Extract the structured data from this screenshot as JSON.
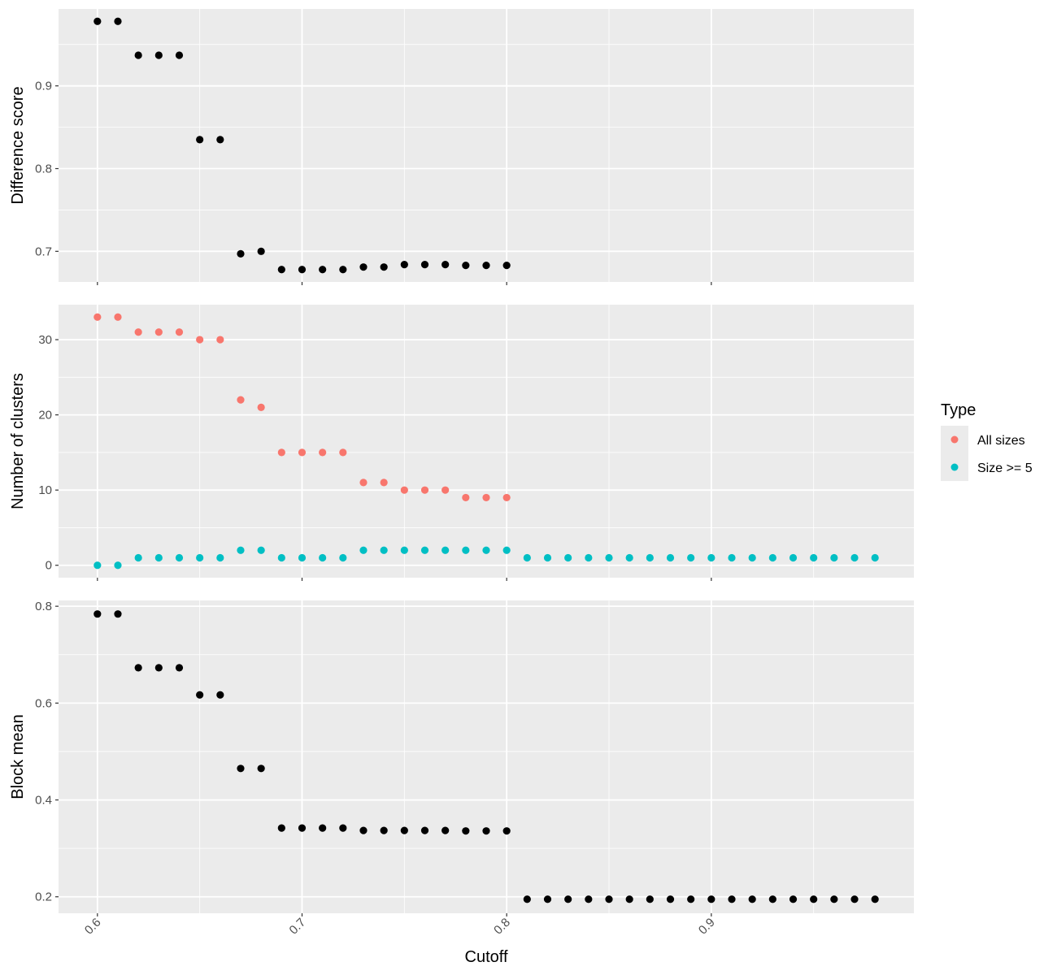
{
  "chart_data": {
    "type": "scatter",
    "xlabel": "Cutoff",
    "x_ticks": [
      "0.6",
      "0.7",
      "0.8",
      "0.9"
    ],
    "xlim": [
      0.581,
      0.999
    ],
    "grid": true,
    "colors": {
      "panel_bg": "#ebebeb",
      "grid": "#ffffff",
      "all_sizes": "#f8766d",
      "size_ge_5": "#00bfc4",
      "black": "#000000"
    },
    "legend": {
      "position": "right",
      "title": "Type",
      "items": [
        {
          "label": "All sizes",
          "color": "#f8766d"
        },
        {
          "label": "Size >= 5",
          "color": "#00bfc4"
        }
      ]
    },
    "panels": [
      {
        "ylabel": "Difference score",
        "ylim": [
          0.663,
          0.993
        ],
        "y_ticks": [
          "0.7",
          "0.8",
          "0.9"
        ],
        "series": [
          {
            "color": "#000000",
            "x": [
              0.6,
              0.61,
              0.62,
              0.63,
              0.64,
              0.65,
              0.66,
              0.67,
              0.68,
              0.69,
              0.7,
              0.71,
              0.72,
              0.73,
              0.74,
              0.75,
              0.76,
              0.77,
              0.78,
              0.79,
              0.8
            ],
            "y": [
              0.978,
              0.978,
              0.937,
              0.937,
              0.937,
              0.835,
              0.835,
              0.697,
              0.7,
              0.678,
              0.678,
              0.678,
              0.678,
              0.681,
              0.681,
              0.684,
              0.684,
              0.684,
              0.683,
              0.683,
              0.683
            ]
          }
        ]
      },
      {
        "ylabel": "Number of clusters",
        "ylim": [
          -1.65,
          34.65
        ],
        "y_ticks": [
          "0",
          "10",
          "20",
          "30"
        ],
        "series": [
          {
            "name": "All sizes",
            "color": "#f8766d",
            "x": [
              0.6,
              0.61,
              0.62,
              0.63,
              0.64,
              0.65,
              0.66,
              0.67,
              0.68,
              0.69,
              0.7,
              0.71,
              0.72,
              0.73,
              0.74,
              0.75,
              0.76,
              0.77,
              0.78,
              0.79,
              0.8
            ],
            "y": [
              33,
              33,
              31,
              31,
              31,
              30,
              30,
              22,
              21,
              15,
              15,
              15,
              15,
              11,
              11,
              10,
              10,
              10,
              9,
              9,
              9
            ]
          },
          {
            "name": "Size >= 5",
            "color": "#00bfc4",
            "x": [
              0.6,
              0.61,
              0.62,
              0.63,
              0.64,
              0.65,
              0.66,
              0.67,
              0.68,
              0.69,
              0.7,
              0.71,
              0.72,
              0.73,
              0.74,
              0.75,
              0.76,
              0.77,
              0.78,
              0.79,
              0.8,
              0.81,
              0.82,
              0.83,
              0.84,
              0.85,
              0.86,
              0.87,
              0.88,
              0.89,
              0.9,
              0.91,
              0.92,
              0.93,
              0.94,
              0.95,
              0.96,
              0.97,
              0.98
            ],
            "y": [
              0,
              0,
              1,
              1,
              1,
              1,
              1,
              2,
              2,
              1,
              1,
              1,
              1,
              2,
              2,
              2,
              2,
              2,
              2,
              2,
              2,
              1,
              1,
              1,
              1,
              1,
              1,
              1,
              1,
              1,
              1,
              1,
              1,
              1,
              1,
              1,
              1,
              1,
              1
            ]
          }
        ]
      },
      {
        "ylabel": "Block mean",
        "ylim": [
          0.166,
          0.812
        ],
        "y_ticks": [
          "0.2",
          "0.4",
          "0.6",
          "0.8"
        ],
        "series": [
          {
            "color": "#000000",
            "x": [
              0.6,
              0.61,
              0.62,
              0.63,
              0.64,
              0.65,
              0.66,
              0.67,
              0.68,
              0.69,
              0.7,
              0.71,
              0.72,
              0.73,
              0.74,
              0.75,
              0.76,
              0.77,
              0.78,
              0.79,
              0.8,
              0.81,
              0.82,
              0.83,
              0.84,
              0.85,
              0.86,
              0.87,
              0.88,
              0.89,
              0.9,
              0.91,
              0.92,
              0.93,
              0.94,
              0.95,
              0.96,
              0.97,
              0.98
            ],
            "y": [
              0.784,
              0.784,
              0.673,
              0.673,
              0.673,
              0.617,
              0.617,
              0.465,
              0.465,
              0.342,
              0.342,
              0.342,
              0.342,
              0.337,
              0.337,
              0.337,
              0.337,
              0.337,
              0.336,
              0.336,
              0.336,
              0.195,
              0.195,
              0.195,
              0.195,
              0.195,
              0.195,
              0.195,
              0.195,
              0.195,
              0.195,
              0.195,
              0.195,
              0.195,
              0.195,
              0.195,
              0.195,
              0.195,
              0.195
            ]
          }
        ]
      }
    ]
  }
}
